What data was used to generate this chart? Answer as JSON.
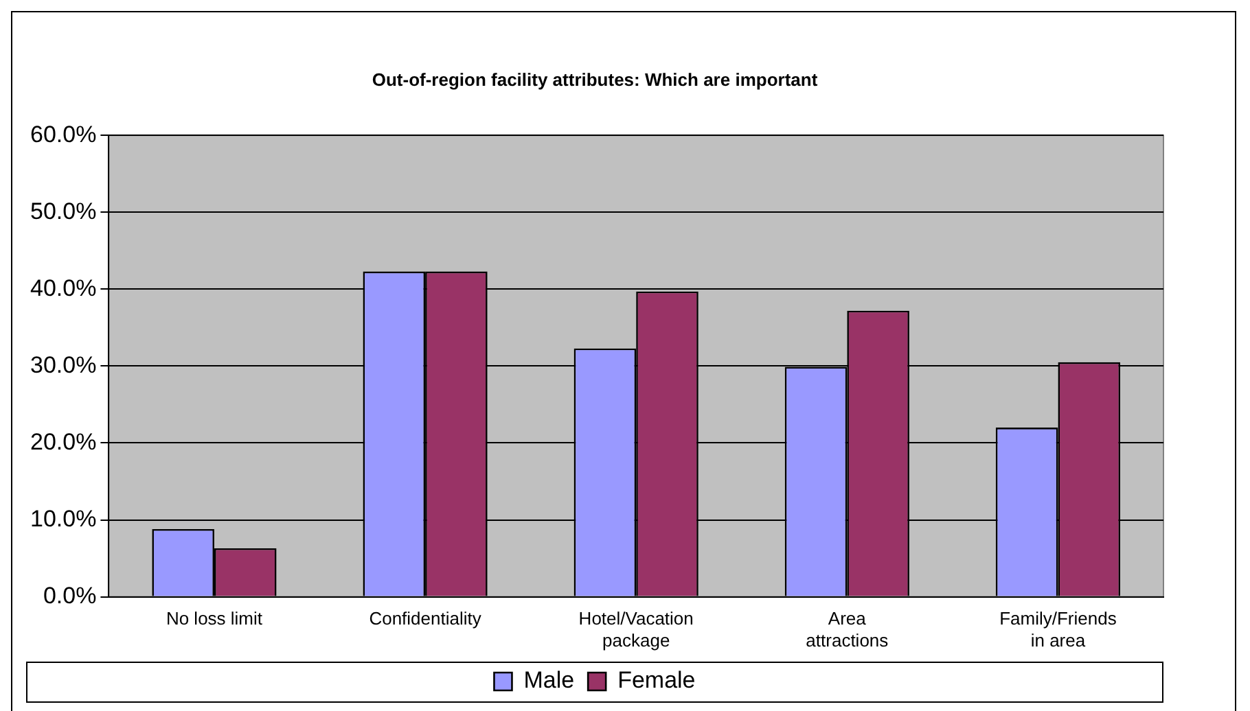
{
  "chart_data": {
    "type": "bar",
    "title": "Out-of-region facility attributes: Which are important",
    "categories": [
      "No loss limit",
      "Confidentiality",
      "Hotel/Vacation package",
      "Area attractions",
      "Family/Friends in area"
    ],
    "series": [
      {
        "name": "Male",
        "color": "#9999ff",
        "values": [
          8.8,
          42.3,
          32.3,
          29.9,
          22.0
        ]
      },
      {
        "name": "Female",
        "color": "#993366",
        "values": [
          6.3,
          42.3,
          39.7,
          37.2,
          30.5
        ]
      }
    ],
    "ylim": [
      0,
      60
    ],
    "yticks": [
      {
        "value": 0,
        "label": "0.0%"
      },
      {
        "value": 10,
        "label": "10.0%"
      },
      {
        "value": 20,
        "label": "20.0%"
      },
      {
        "value": 30,
        "label": "30.0%"
      },
      {
        "value": 40,
        "label": "40.0%"
      },
      {
        "value": 50,
        "label": "50.0%"
      },
      {
        "value": 60,
        "label": "60.0%"
      }
    ],
    "grid": "y",
    "legend": "bottom"
  }
}
